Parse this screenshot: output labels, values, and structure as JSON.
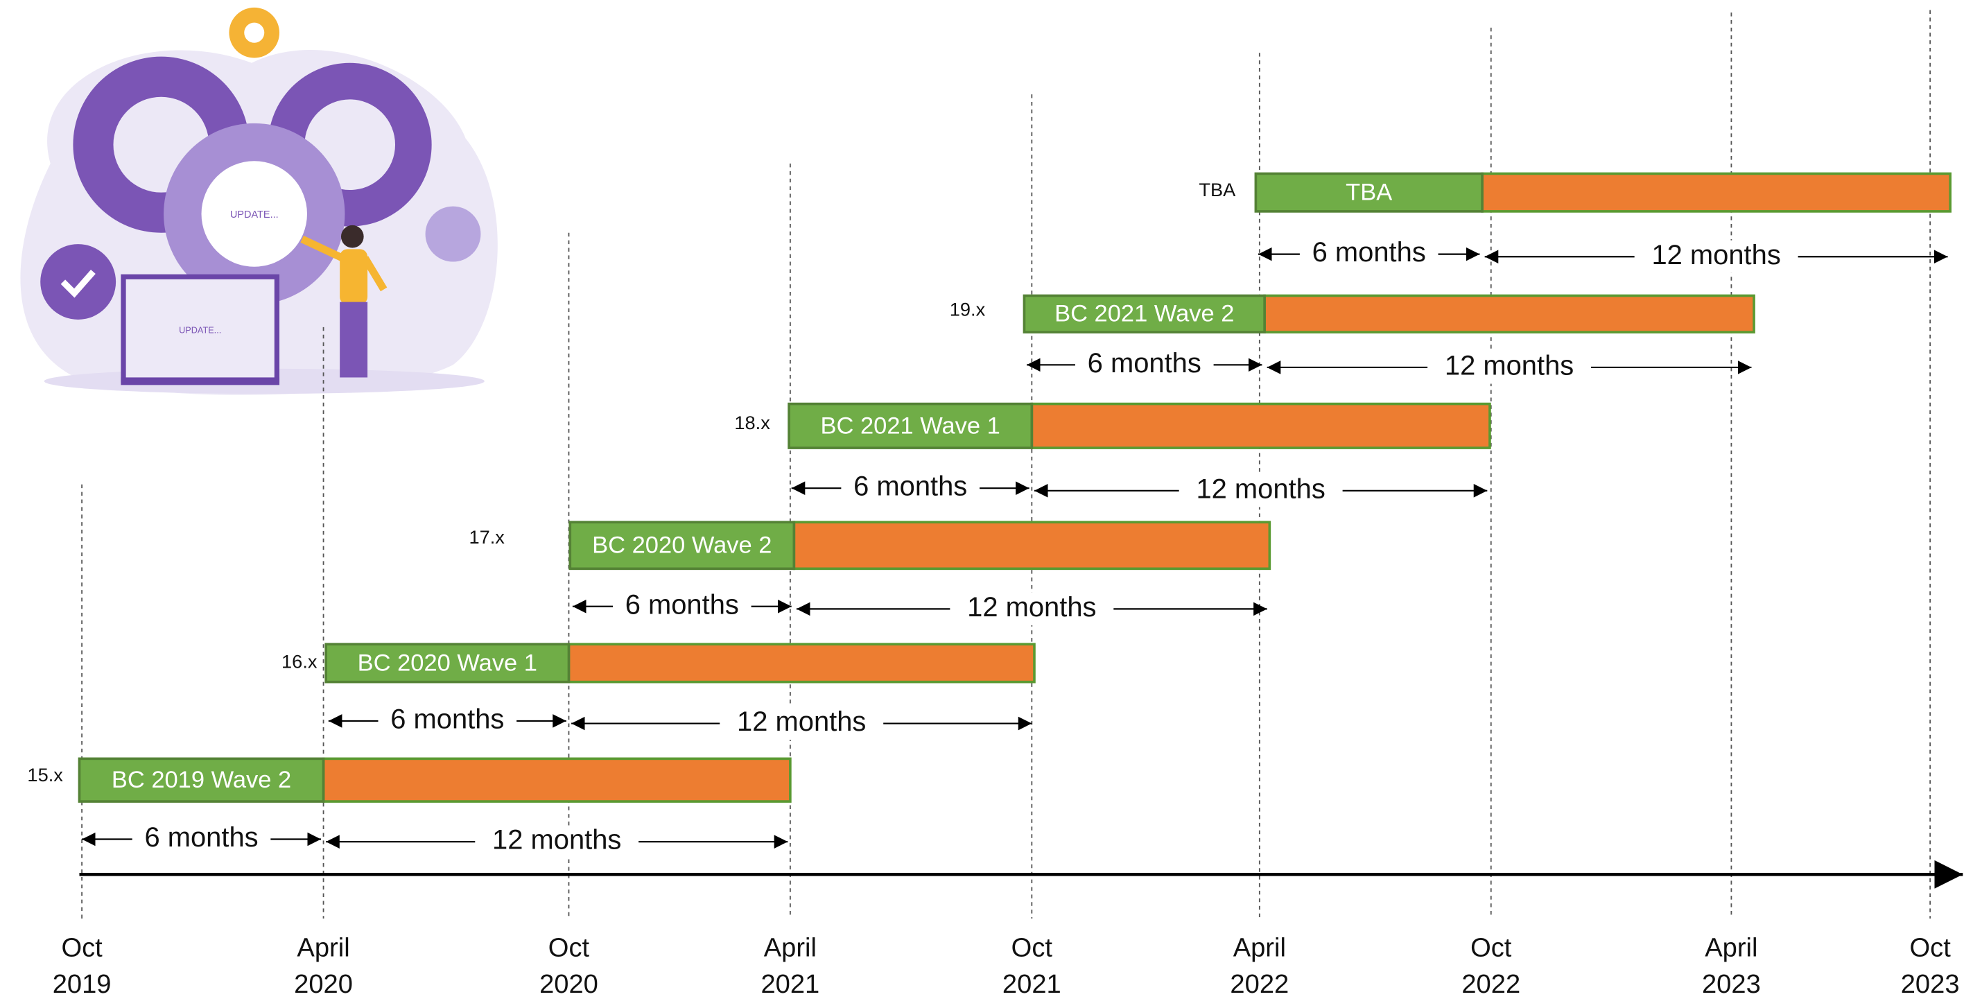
{
  "illustration": {
    "screen_text": "UPDATE...",
    "laptop_text": "UPDATE..."
  },
  "releases": [
    {
      "version": "15.x",
      "name": "BC 2019 Wave 2",
      "mainstream": "6 months",
      "extended": "12 months"
    },
    {
      "version": "16.x",
      "name": "BC 2020 Wave 1",
      "mainstream": "6 months",
      "extended": "12 months"
    },
    {
      "version": "17.x",
      "name": "BC 2020 Wave 2",
      "mainstream": "6 months",
      "extended": "12 months"
    },
    {
      "version": "18.x",
      "name": "BC 2021 Wave 1",
      "mainstream": "6 months",
      "extended": "12 months"
    },
    {
      "version": "19.x",
      "name": "BC 2021 Wave 2",
      "mainstream": "6 months",
      "extended": "12 months"
    },
    {
      "version": "TBA",
      "name": "TBA",
      "mainstream": "6 months",
      "extended": "12 months"
    }
  ],
  "timeline": [
    {
      "month": "Oct",
      "year": "2019"
    },
    {
      "month": "April",
      "year": "2020"
    },
    {
      "month": "Oct",
      "year": "2020"
    },
    {
      "month": "April",
      "year": "2021"
    },
    {
      "month": "Oct",
      "year": "2021"
    },
    {
      "month": "April",
      "year": "2022"
    },
    {
      "month": "Oct",
      "year": "2022"
    },
    {
      "month": "April",
      "year": "2023"
    },
    {
      "month": "Oct",
      "year": "2023"
    }
  ]
}
